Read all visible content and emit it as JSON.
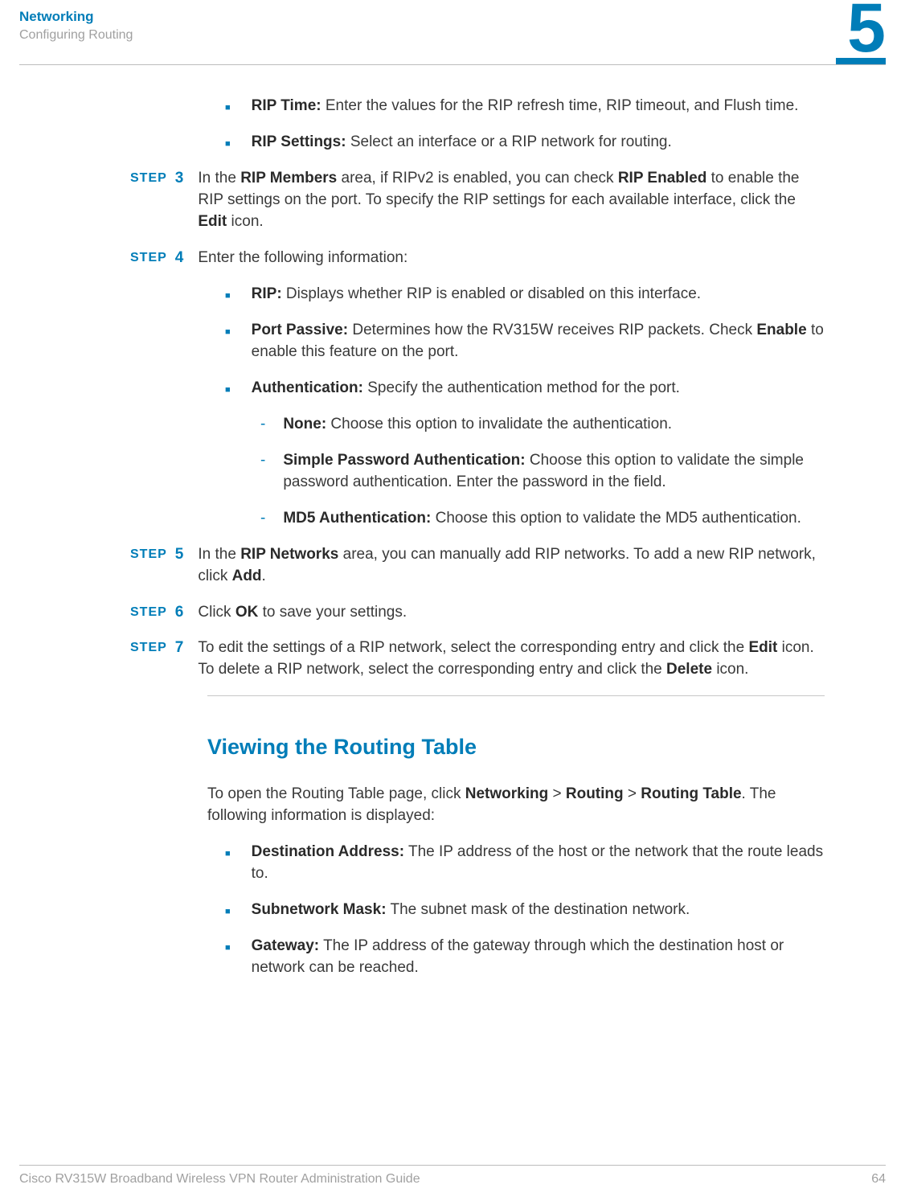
{
  "header": {
    "title": "Networking",
    "subtitle": "Configuring Routing",
    "chapter": "5"
  },
  "bullets_top": [
    {
      "label": "RIP Time:",
      "text": " Enter the values for the RIP refresh time, RIP timeout, and Flush time."
    },
    {
      "label": "RIP Settings:",
      "text": " Select an interface or a RIP network for routing."
    }
  ],
  "steps": {
    "s3": {
      "num": "3",
      "pre": "In the ",
      "b1": "RIP Members",
      "mid1": " area, if RIPv2 is enabled, you can check ",
      "b2": "RIP Enabled",
      "mid2": " to enable the RIP settings on the port. To specify the RIP settings for each available interface, click the ",
      "b3": "Edit",
      "end": " icon."
    },
    "s4": {
      "num": "4",
      "text": "Enter the following information:"
    },
    "s5": {
      "num": "5",
      "pre": "In the ",
      "b1": "RIP Networks",
      "mid1": " area, you can manually add RIP networks. To add a new RIP network, click ",
      "b2": "Add",
      "end": "."
    },
    "s6": {
      "num": "6",
      "pre": "Click ",
      "b1": "OK",
      "end": " to save your settings."
    },
    "s7": {
      "num": "7",
      "pre": "To edit the settings of a RIP network, select the corresponding entry and click the ",
      "b1": "Edit",
      "mid1": " icon. To delete a RIP network, select the corresponding entry and click the ",
      "b2": "Delete",
      "end": " icon."
    }
  },
  "step4_bullets": [
    {
      "label": "RIP:",
      "text": " Displays whether RIP is enabled or disabled on this interface."
    },
    {
      "label": "Port Passive:",
      "text": " Determines how the RV315W receives RIP packets. Check ",
      "b2": "Enable",
      "text2": " to enable this feature on the port."
    },
    {
      "label": "Authentication:",
      "text": " Specify the authentication method for the port."
    }
  ],
  "auth_subs": [
    {
      "label": "None:",
      "text": " Choose this option to invalidate the authentication."
    },
    {
      "label": "Simple Password Authentication:",
      "text": " Choose this option to validate the simple password authentication. Enter the password in the field."
    },
    {
      "label": "MD5 Authentication:",
      "text": " Choose this option to validate the MD5 authentication."
    }
  ],
  "section": {
    "heading": "Viewing the Routing Table",
    "intro_pre": "To open the Routing Table page, click ",
    "b1": "Networking",
    "gt1": " > ",
    "b2": "Routing",
    "gt2": " > ",
    "b3": "Routing Table",
    "intro_post": ". The following information is displayed:"
  },
  "section_bullets": [
    {
      "label": "Destination Address:",
      "text": " The IP address of the host or the network that the route leads to."
    },
    {
      "label": "Subnetwork Mask:",
      "text": " The subnet mask of the destination network."
    },
    {
      "label": "Gateway:",
      "text": " The IP address of the gateway through which the destination host or network can be reached."
    }
  ],
  "footer": {
    "guide": "Cisco RV315W Broadband Wireless VPN Router Administration Guide",
    "page": "64"
  },
  "step_label": "STEP"
}
